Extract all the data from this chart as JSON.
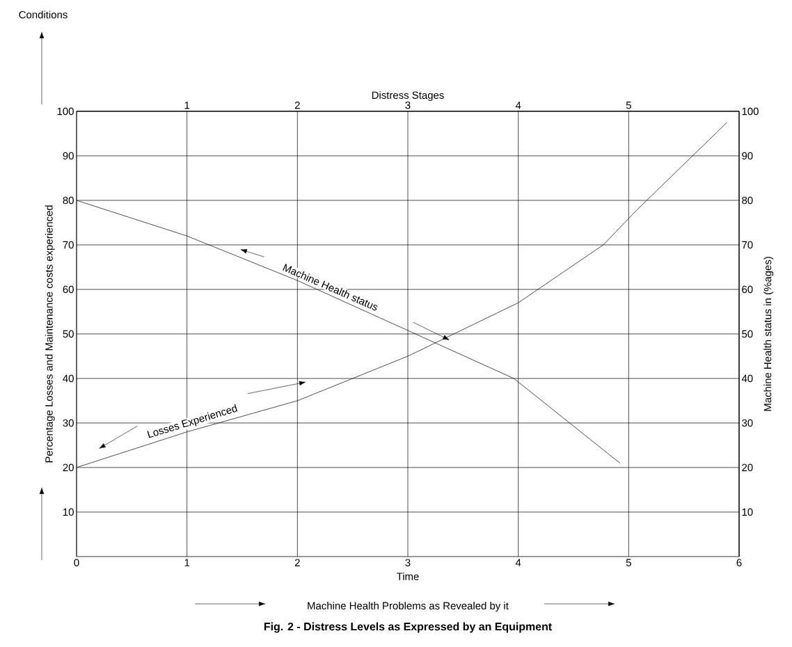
{
  "chart_data": {
    "type": "line",
    "title": "**Fig. 2 - Distress Levels as Expressed by an Equipment**",
    "xlabel": "Time",
    "x2label": "Distress Stages",
    "ylabel": "Percentage Losses and Maintenance costs experienced",
    "y2label": "Machine Health status in (%ages)",
    "annotations": [
      "Conditions",
      "Machine Health Problems as Revealed by it"
    ],
    "xlim": [
      0,
      6
    ],
    "xticks": [
      0,
      1,
      2,
      3,
      4,
      5,
      6
    ],
    "x2lim": [
      0,
      6
    ],
    "x2ticks": [
      1,
      2,
      3,
      4,
      5
    ],
    "ylim": [
      0,
      100
    ],
    "yticks": [
      10,
      20,
      30,
      40,
      50,
      60,
      70,
      80,
      90,
      100
    ],
    "y2lim": [
      0,
      100
    ],
    "y2ticks": [
      10,
      20,
      30,
      40,
      50,
      60,
      70,
      80,
      90,
      100
    ],
    "grid": true,
    "series": [
      {
        "name": "Losses Experienced",
        "color": "#231f20",
        "x": [
          0,
          1,
          2,
          3,
          4,
          4.77,
          5.08,
          5.89
        ],
        "values": [
          20,
          28,
          35,
          45,
          57,
          70,
          78,
          97.5
        ]
      },
      {
        "name": "Machine Health status",
        "color": "#231f20",
        "axis": "y2",
        "x": [
          0,
          1,
          2,
          3.96,
          4.92
        ],
        "values": [
          80,
          72,
          62,
          40,
          21
        ]
      }
    ]
  }
}
